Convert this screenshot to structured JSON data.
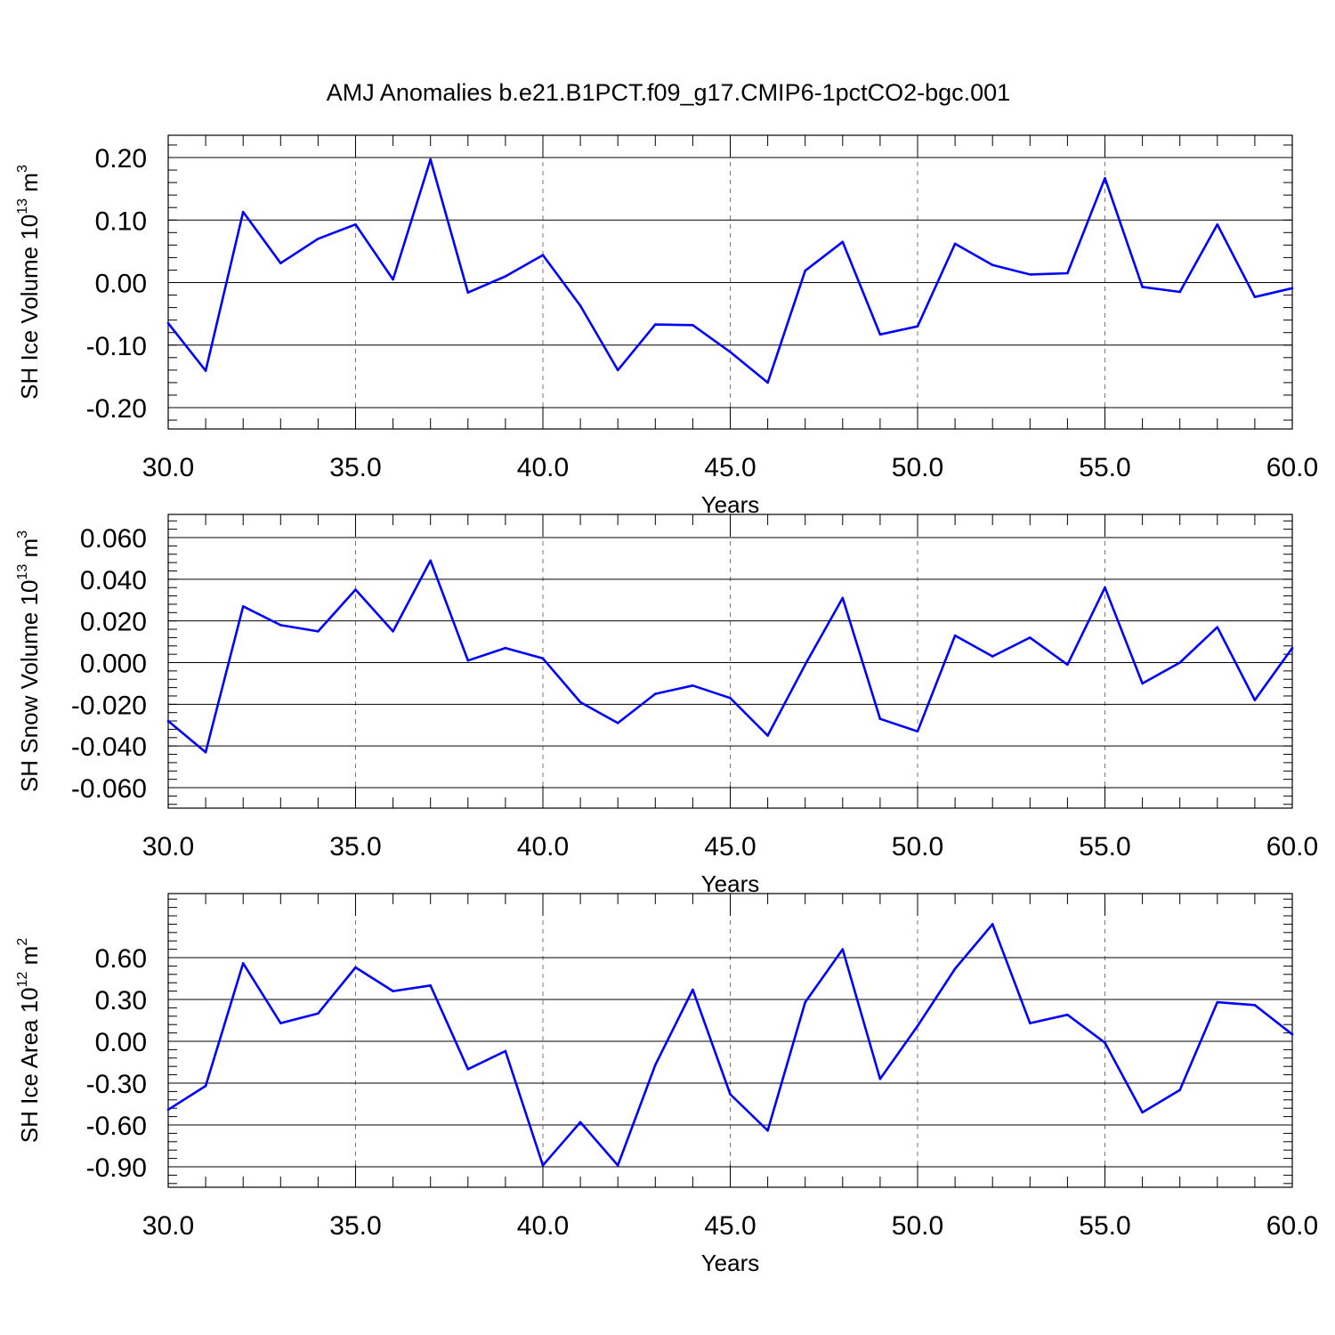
{
  "title": "AMJ Anomalies b.e21.B1PCT.f09_g17.CMIP6-1pctCO2-bgc.001",
  "colors": {
    "line": "#0000ff",
    "grid": "#777777",
    "axis": "#000000"
  },
  "chart_data": [
    {
      "type": "line",
      "title": "",
      "xlabel": "Years",
      "ylabel_main": "SH Ice Volume 10",
      "ylabel_exp": "13",
      "ylabel_unit": " m",
      "ylabel_unit_exp": "3",
      "xlim": [
        30,
        60
      ],
      "ylim": [
        -0.2,
        0.2
      ],
      "x_ticks": [
        "30.0",
        "35.0",
        "40.0",
        "45.0",
        "50.0",
        "55.0",
        "60.0"
      ],
      "y_ticks": [
        "-0.20",
        "-0.10",
        "0.00",
        "0.10",
        "0.20"
      ],
      "grid": "vertical dashed",
      "x": [
        30,
        31,
        32,
        33,
        34,
        35,
        36,
        37,
        38,
        39,
        40,
        41,
        42,
        43,
        44,
        45,
        46,
        47,
        48,
        49,
        50,
        51,
        52,
        53,
        54,
        55,
        56,
        57,
        58,
        59,
        60
      ],
      "values": [
        -0.065,
        -0.141,
        0.113,
        0.031,
        0.07,
        0.093,
        0.005,
        0.197,
        -0.016,
        0.01,
        0.044,
        -0.037,
        -0.14,
        -0.067,
        -0.068,
        -0.111,
        -0.16,
        0.019,
        0.065,
        -0.083,
        -0.07,
        0.062,
        0.028,
        0.013,
        0.015,
        0.167,
        -0.007,
        -0.015,
        0.093,
        -0.023,
        -0.009
      ]
    },
    {
      "type": "line",
      "title": "",
      "xlabel": "Years",
      "ylabel_main": "SH Snow Volume 10",
      "ylabel_exp": "13",
      "ylabel_unit": " m",
      "ylabel_unit_exp": "3",
      "xlim": [
        30,
        60
      ],
      "ylim": [
        -0.06,
        0.06
      ],
      "x_ticks": [
        "30.0",
        "35.0",
        "40.0",
        "45.0",
        "50.0",
        "55.0",
        "60.0"
      ],
      "y_ticks": [
        "-0.060",
        "-0.040",
        "-0.020",
        "0.000",
        "0.020",
        "0.040",
        "0.060"
      ],
      "grid": "vertical dashed",
      "x": [
        30,
        31,
        32,
        33,
        34,
        35,
        36,
        37,
        38,
        39,
        40,
        41,
        42,
        43,
        44,
        45,
        46,
        47,
        48,
        49,
        50,
        51,
        52,
        53,
        54,
        55,
        56,
        57,
        58,
        59,
        60
      ],
      "values": [
        -0.028,
        -0.043,
        0.027,
        0.018,
        0.015,
        0.035,
        0.015,
        0.049,
        0.001,
        0.007,
        0.002,
        -0.019,
        -0.029,
        -0.015,
        -0.011,
        -0.017,
        -0.035,
        -0.001,
        0.031,
        -0.027,
        -0.033,
        0.013,
        0.003,
        0.012,
        -0.001,
        0.036,
        -0.01,
        0.0,
        0.017,
        -0.018,
        0.007
      ]
    },
    {
      "type": "line",
      "title": "",
      "xlabel": "Years",
      "ylabel_main": "SH Ice Area 10",
      "ylabel_exp": "12",
      "ylabel_unit": " m",
      "ylabel_unit_exp": "2",
      "xlim": [
        30,
        60
      ],
      "ylim": [
        -0.9,
        0.9
      ],
      "x_ticks": [
        "30.0",
        "35.0",
        "40.0",
        "45.0",
        "50.0",
        "55.0",
        "60.0"
      ],
      "y_ticks": [
        "-0.90",
        "-0.60",
        "-0.30",
        "0.00",
        "0.30",
        "0.60"
      ],
      "grid": "vertical dashed",
      "x": [
        30,
        31,
        32,
        33,
        34,
        35,
        36,
        37,
        38,
        39,
        40,
        41,
        42,
        43,
        44,
        45,
        46,
        47,
        48,
        49,
        50,
        51,
        52,
        53,
        54,
        55,
        56,
        57,
        58,
        59,
        60
      ],
      "values": [
        -0.49,
        -0.32,
        0.56,
        0.13,
        0.2,
        0.53,
        0.36,
        0.4,
        -0.2,
        -0.07,
        -0.89,
        -0.58,
        -0.89,
        -0.17,
        0.37,
        -0.38,
        -0.64,
        0.28,
        0.66,
        -0.27,
        0.11,
        0.52,
        0.84,
        0.13,
        0.19,
        -0.01,
        -0.51,
        -0.35,
        0.28,
        0.26,
        0.05
      ]
    }
  ]
}
